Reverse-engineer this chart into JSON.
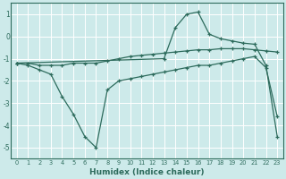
{
  "line_flat": {
    "x": [
      0,
      1,
      2,
      3,
      4,
      5,
      6,
      7,
      8,
      9,
      10,
      11,
      12,
      13,
      14,
      15,
      16,
      17,
      18,
      19,
      20,
      21,
      22,
      23
    ],
    "y": [
      -1.2,
      -1.2,
      -1.3,
      -1.3,
      -1.3,
      -1.2,
      -1.2,
      -1.2,
      -1.1,
      -1.0,
      -0.9,
      -0.85,
      -0.8,
      -0.75,
      -0.7,
      -0.65,
      -0.6,
      -0.6,
      -0.55,
      -0.55,
      -0.55,
      -0.6,
      -0.65,
      -0.7
    ]
  },
  "line_dip": {
    "x": [
      0,
      1,
      2,
      3,
      4,
      5,
      6,
      7,
      8,
      9,
      10,
      11,
      12,
      13,
      14,
      15,
      16,
      17,
      18,
      19,
      20,
      21,
      22,
      23
    ],
    "y": [
      -1.2,
      -1.3,
      -1.5,
      -1.7,
      -2.7,
      -3.5,
      -4.5,
      -5.0,
      -2.4,
      -2.0,
      -1.9,
      -1.8,
      -1.7,
      -1.6,
      -1.5,
      -1.4,
      -1.3,
      -1.3,
      -1.2,
      -1.1,
      -1.0,
      -0.9,
      -1.4,
      -3.6
    ]
  },
  "line_hump": {
    "x": [
      0,
      13,
      14,
      15,
      16,
      17,
      18,
      19,
      20,
      21,
      22,
      23
    ],
    "y": [
      -1.2,
      -1.0,
      0.4,
      1.0,
      1.1,
      0.1,
      -0.1,
      -0.2,
      -0.3,
      -0.35,
      -1.3,
      -4.5
    ]
  },
  "ylim": [
    -5.5,
    1.5
  ],
  "xlim": [
    -0.5,
    23.5
  ],
  "yticks": [
    -5,
    -4,
    -3,
    -2,
    -1,
    0,
    1
  ],
  "xticks": [
    0,
    1,
    2,
    3,
    4,
    5,
    6,
    7,
    8,
    9,
    10,
    11,
    12,
    13,
    14,
    15,
    16,
    17,
    18,
    19,
    20,
    21,
    22,
    23
  ],
  "xlabel": "Humidex (Indice chaleur)",
  "line_color": "#2d6b5c",
  "bg_color": "#cdeaea",
  "grid_color": "#ffffff"
}
